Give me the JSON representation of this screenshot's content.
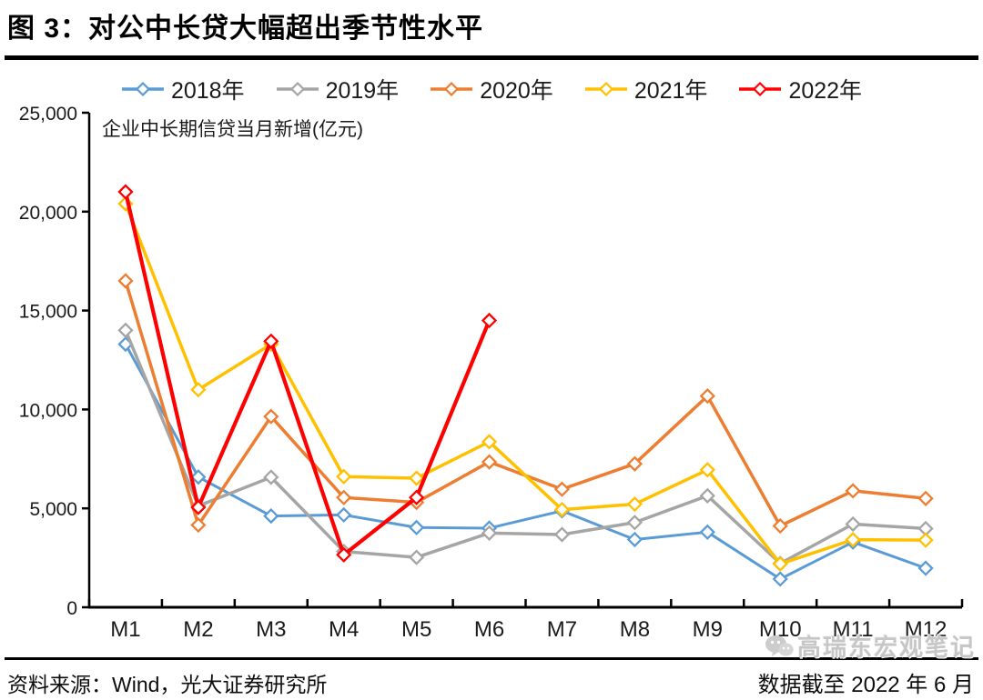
{
  "page": {
    "title": "图 3：对公中长贷大幅超出季节性水平"
  },
  "chart_data": {
    "type": "line",
    "title": "企业中长期信贷当月新增(亿元)",
    "categories": [
      "M1",
      "M2",
      "M3",
      "M4",
      "M5",
      "M6",
      "M7",
      "M8",
      "M9",
      "M10",
      "M11",
      "M12"
    ],
    "series": [
      {
        "name": "2018年",
        "color": "#5B9BD5",
        "values": [
          13300,
          6585,
          4615,
          4668,
          4031,
          4001,
          4875,
          3425,
          3800,
          1429,
          3295,
          1976
        ]
      },
      {
        "name": "2019年",
        "color": "#A5A5A5",
        "values": [
          14000,
          5127,
          6573,
          2823,
          2524,
          3753,
          3678,
          4285,
          5637,
          2216,
          4206,
          3978
        ]
      },
      {
        "name": "2020年",
        "color": "#ED7D31",
        "values": [
          16500,
          4157,
          9643,
          5547,
          5305,
          7348,
          5968,
          7252,
          10680,
          4113,
          5887,
          5500
        ]
      },
      {
        "name": "2021年",
        "color": "#FFC000",
        "values": [
          20400,
          11000,
          13300,
          6605,
          6528,
          8367,
          4937,
          5215,
          6948,
          2190,
          3417,
          3393
        ]
      },
      {
        "name": "2022年",
        "color": "#FF0000",
        "values": [
          21000,
          5052,
          13448,
          2652,
          5551,
          14497,
          null,
          null,
          null,
          null,
          null,
          null
        ]
      }
    ],
    "ylim": [
      0,
      25000
    ],
    "ytick_interval": 5000,
    "ytick_labels": [
      "0",
      "5,000",
      "10,000",
      "15,000",
      "20,000",
      "25,000"
    ],
    "legend_position": "top",
    "grid": false,
    "marker": "open-diamond"
  },
  "footer": {
    "source": "资料来源：Wind，光大证券研究所",
    "data_cutoff": "数据截至 2022 年 6 月",
    "watermark": "高瑞东宏观笔记"
  }
}
